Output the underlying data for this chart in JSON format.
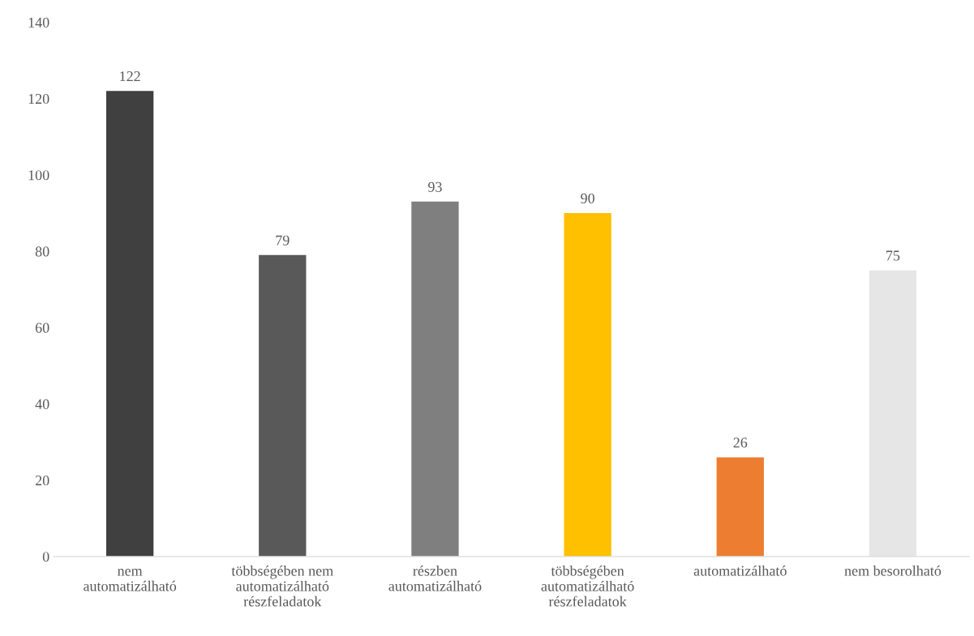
{
  "chart_data": {
    "type": "bar",
    "categories": [
      "nem\nautomatizálható",
      "többségében nem\nautomatizálható\nrészfeladatok",
      "részben\nautomatizálható",
      "többségében\nautomatizálható\nrészfeladatok",
      "automatizálható",
      "nem besorolható"
    ],
    "values": [
      122,
      79,
      93,
      90,
      26,
      75
    ],
    "colors": [
      "#404040",
      "#595959",
      "#7f7f7f",
      "#ffc000",
      "#ed7d31",
      "#e7e6e6"
    ],
    "ylim": [
      0,
      140
    ],
    "yticks": [
      0,
      20,
      40,
      60,
      80,
      100,
      120,
      140
    ],
    "data_labels": true,
    "grid": false
  }
}
